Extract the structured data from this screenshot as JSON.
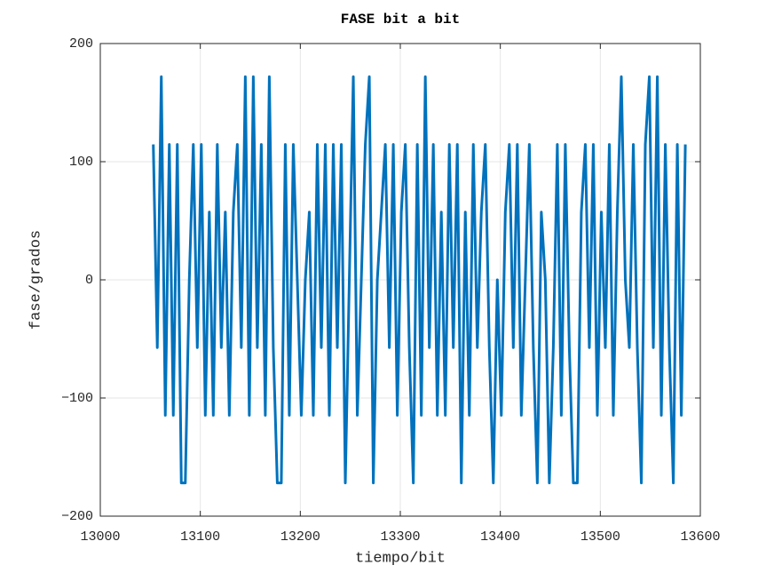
{
  "chart_data": {
    "type": "line",
    "title": "FASE bit a bit",
    "x_label": "tiempo/bit",
    "y_label": "fase/grados",
    "xlim": [
      13000,
      13600
    ],
    "ylim": [
      -200,
      200
    ],
    "xticks": [
      13000,
      13100,
      13200,
      13300,
      13400,
      13500,
      13600
    ],
    "yticks": [
      {
        "value": -200,
        "label": "−200"
      },
      {
        "value": -100,
        "label": "−100"
      },
      0,
      100,
      200
    ],
    "grid": true,
    "x": [
      13053,
      13057,
      13061,
      13065,
      13069,
      13073,
      13077,
      13081,
      13085,
      13089,
      13093,
      13097,
      13101,
      13105,
      13109,
      13113,
      13117,
      13121,
      13125,
      13129,
      13133,
      13137,
      13141,
      13145,
      13149,
      13153,
      13157,
      13161,
      13165,
      13169,
      13173,
      13177,
      13181,
      13185,
      13189,
      13193,
      13197,
      13201,
      13205,
      13209,
      13213,
      13217,
      13221,
      13225,
      13229,
      13233,
      13237,
      13241,
      13245,
      13249,
      13253,
      13257,
      13261,
      13265,
      13269,
      13273,
      13277,
      13281,
      13285,
      13289,
      13293,
      13297,
      13301,
      13305,
      13309,
      13313,
      13317,
      13321,
      13325,
      13329,
      13333,
      13337,
      13341,
      13345,
      13349,
      13353,
      13357,
      13361,
      13365,
      13369,
      13373,
      13377,
      13381,
      13385,
      13389,
      13393,
      13397,
      13401,
      13405,
      13409,
      13413,
      13417,
      13421,
      13425,
      13429,
      13433,
      13437,
      13441,
      13445,
      13449,
      13453,
      13457,
      13461,
      13465,
      13469,
      13473,
      13477,
      13481,
      13485,
      13489,
      13493,
      13497,
      13501,
      13505,
      13509,
      13513,
      13517,
      13521,
      13525,
      13529,
      13533,
      13537,
      13541,
      13545,
      13549,
      13553,
      13557,
      13561,
      13565,
      13569,
      13573,
      13577,
      13581,
      13585
    ],
    "series": [
      {
        "color": "#0072bd",
        "values": [
          114.6,
          -57.3,
          171.9,
          -114.6,
          114.6,
          -114.6,
          114.6,
          -171.9,
          -171.9,
          0,
          114.6,
          -57.3,
          114.6,
          -114.6,
          57.3,
          -114.6,
          114.6,
          -57.3,
          57.3,
          -114.6,
          57.3,
          114.6,
          -57.3,
          171.9,
          -114.6,
          171.9,
          -57.3,
          114.6,
          -114.6,
          171.9,
          -57.3,
          -171.9,
          -171.9,
          114.6,
          -114.6,
          114.6,
          0,
          -114.6,
          0,
          57.3,
          -114.6,
          114.6,
          -57.3,
          114.6,
          -114.6,
          114.6,
          -57.3,
          114.6,
          -171.9,
          0,
          171.9,
          -114.6,
          0,
          114.6,
          171.9,
          -171.9,
          0,
          57.3,
          114.6,
          -57.3,
          114.6,
          -114.6,
          57.3,
          114.6,
          -57.3,
          -171.9,
          114.6,
          -114.6,
          171.9,
          -57.3,
          114.6,
          -114.6,
          57.3,
          -114.6,
          114.6,
          -57.3,
          114.6,
          -171.9,
          57.3,
          -114.6,
          114.6,
          -57.3,
          57.3,
          114.6,
          -57.3,
          -171.9,
          0,
          -114.6,
          57.3,
          114.6,
          -57.3,
          114.6,
          -114.6,
          0,
          114.6,
          -57.3,
          -171.9,
          57.3,
          0,
          -171.9,
          -57.3,
          114.6,
          -114.6,
          114.6,
          -57.3,
          -171.9,
          -171.9,
          57.3,
          114.6,
          -57.3,
          114.6,
          -114.6,
          57.3,
          -57.3,
          114.6,
          -114.6,
          57.3,
          171.9,
          0,
          -57.3,
          114.6,
          -57.3,
          -171.9,
          114.6,
          171.9,
          -57.3,
          171.9,
          -114.6,
          114.6,
          -57.3,
          -171.9,
          114.6,
          -114.6,
          114.6
        ]
      }
    ]
  }
}
